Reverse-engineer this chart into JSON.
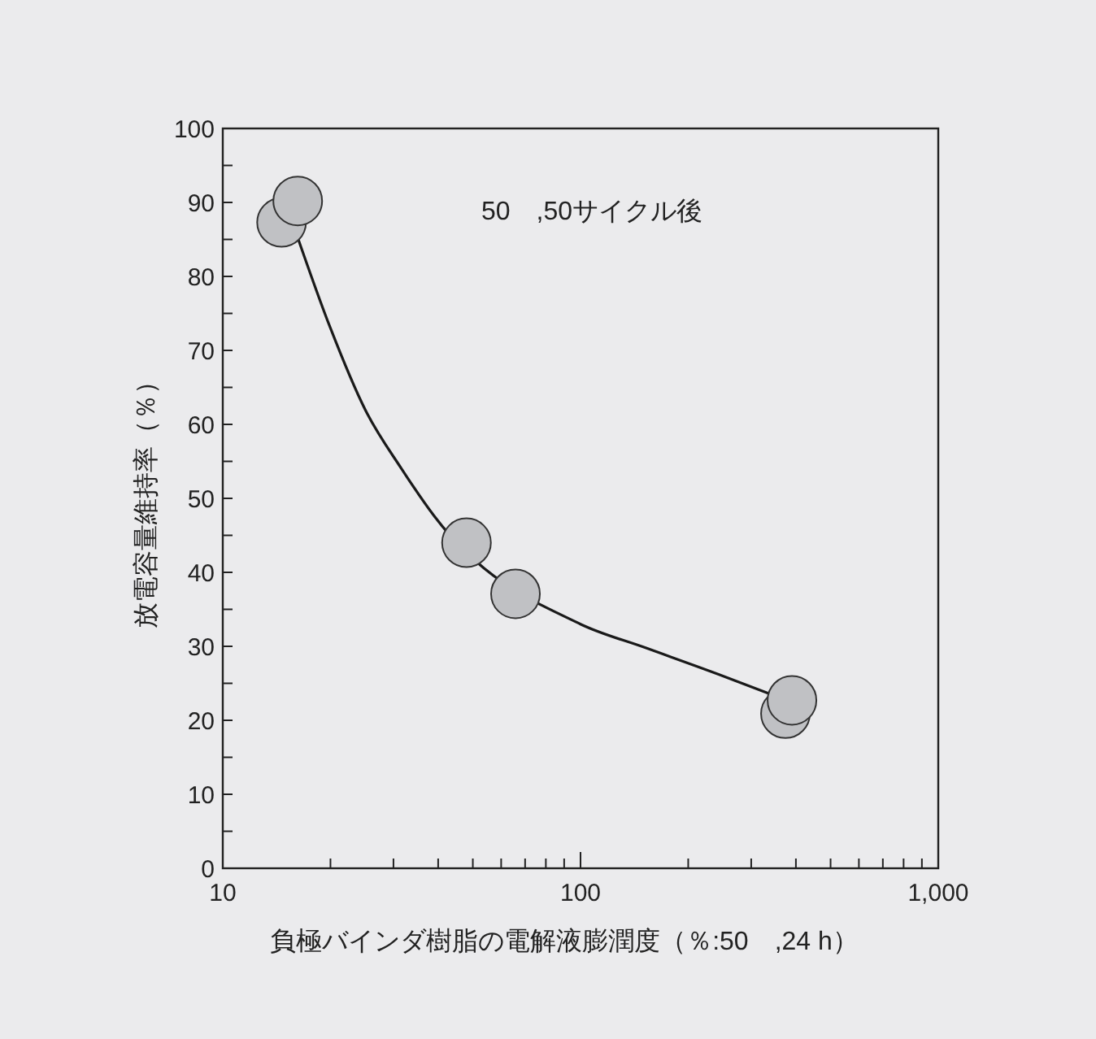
{
  "chart_data": {
    "type": "scatter",
    "xlabel": "負極バインダ樹脂の電解液膨潤度（％:50　,24 h）",
    "ylabel": "放電容量維持率（％）",
    "annotations": [
      "50　,50サイクル後"
    ],
    "log": "x",
    "xlim": [
      10,
      1000
    ],
    "ylim": [
      0,
      100
    ],
    "xticks": [
      10,
      {
        "value": 20,
        "label": null
      },
      {
        "value": 30,
        "label": null
      },
      {
        "value": 40,
        "label": null
      },
      {
        "value": 50,
        "label": null
      },
      {
        "value": 60,
        "label": null
      },
      {
        "value": 70,
        "label": null
      },
      {
        "value": 80,
        "label": null
      },
      {
        "value": 90,
        "label": null
      },
      100,
      {
        "value": 200,
        "label": null
      },
      {
        "value": 300,
        "label": null
      },
      {
        "value": 400,
        "label": null
      },
      {
        "value": 500,
        "label": null
      },
      {
        "value": 600,
        "label": null
      },
      {
        "value": 700,
        "label": null
      },
      {
        "value": 800,
        "label": null
      },
      {
        "value": 900,
        "label": null
      },
      {
        "value": 1000,
        "label": "1,000"
      }
    ],
    "yticks": [
      0,
      {
        "value": 5,
        "label": null
      },
      10,
      {
        "value": 15,
        "label": null
      },
      20,
      {
        "value": 25,
        "label": null
      },
      30,
      {
        "value": 35,
        "label": null
      },
      40,
      {
        "value": 45,
        "label": null
      },
      50,
      {
        "value": 55,
        "label": null
      },
      60,
      {
        "value": 65,
        "label": null
      },
      70,
      {
        "value": 75,
        "label": null
      },
      80,
      {
        "value": 85,
        "label": null
      },
      90,
      {
        "value": 95,
        "label": null
      },
      100
    ],
    "grid": false,
    "series": [
      {
        "type": "line",
        "color": "#1a1a1a",
        "x": [
          16,
          20,
          25,
          31.6,
          39,
          100,
          152,
          250,
          337
        ],
        "values": [
          86,
          73,
          62,
          54,
          47.6,
          33,
          29.8,
          26,
          23.6
        ]
      },
      {
        "marker": "circle",
        "color": "#c0c1c4",
        "x": [
          14.6,
          16.2,
          48,
          65.8,
          374,
          390
        ],
        "values": [
          87.3,
          90.2,
          44,
          37.1,
          20.9,
          22.7
        ]
      }
    ]
  }
}
